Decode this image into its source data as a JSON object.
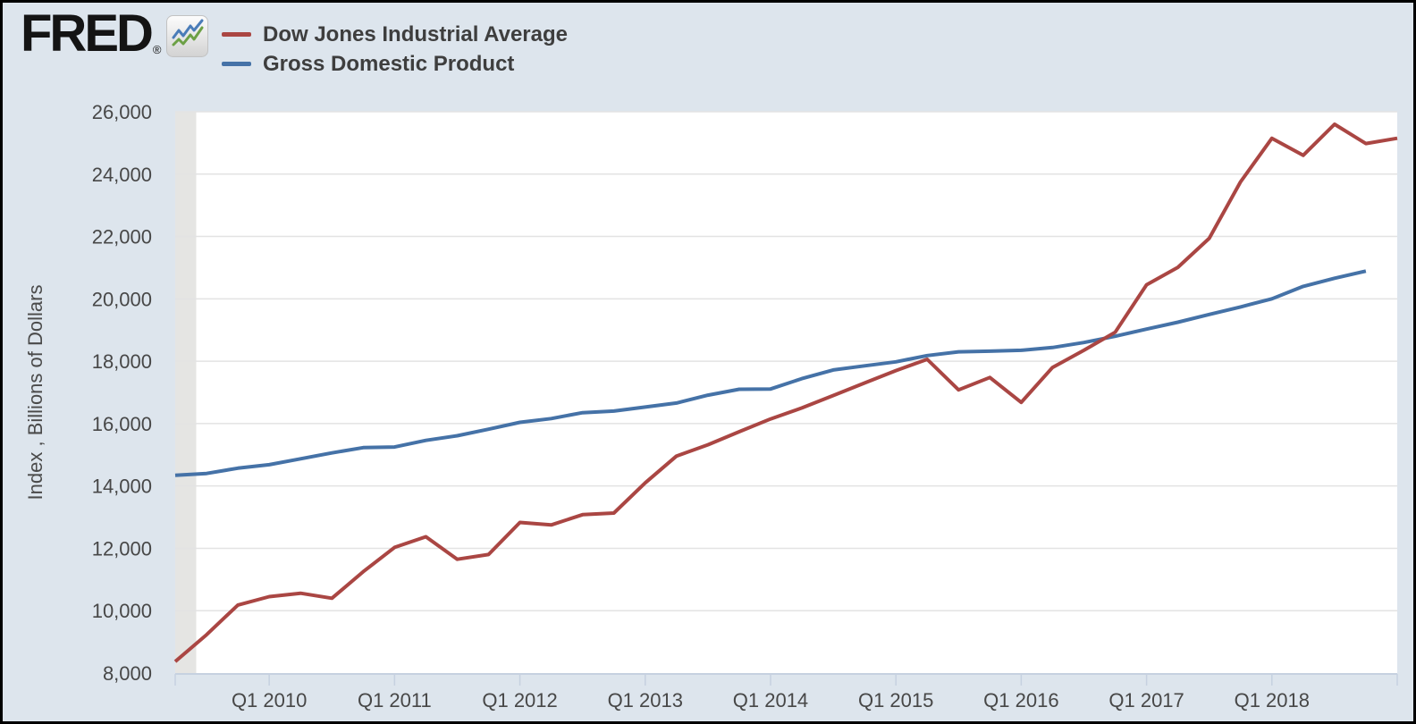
{
  "window": {
    "border_color": "#000000",
    "background_color": "#dde5ed"
  },
  "header": {
    "logo_text": "FRED",
    "registered_mark": "®",
    "logo_icon": "line-chart-icon"
  },
  "legend": {
    "position": "top-left",
    "items": [
      {
        "label": "Dow Jones Industrial Average",
        "color": "#aa4643"
      },
      {
        "label": "Gross Domestic Product",
        "color": "#4572a7"
      }
    ]
  },
  "colors": {
    "plot_background": "#ffffff",
    "gridline": "#e3e3e3",
    "axis": "#c6d1e0",
    "recession_band": "#e5e5e3",
    "tick_text": "#474747"
  },
  "chart_data": {
    "type": "line",
    "title": "",
    "xlabel": "",
    "ylabel": "Index , Billions of Dollars",
    "ylim": [
      8000,
      26000
    ],
    "y_tick_step": 2000,
    "grid": "horizontal-only",
    "legend_position": "top-left",
    "frequency": "quarterly",
    "x_range": {
      "start": "2009 Q2",
      "end": "2019 Q1",
      "quarter_count": 40
    },
    "y_ticks": [
      {
        "value": 8000,
        "label": "8,000"
      },
      {
        "value": 10000,
        "label": "10,000"
      },
      {
        "value": 12000,
        "label": "12,000"
      },
      {
        "value": 14000,
        "label": "14,000"
      },
      {
        "value": 16000,
        "label": "16,000"
      },
      {
        "value": 18000,
        "label": "18,000"
      },
      {
        "value": 20000,
        "label": "20,000"
      },
      {
        "value": 22000,
        "label": "22,000"
      },
      {
        "value": 24000,
        "label": "24,000"
      },
      {
        "value": 26000,
        "label": "26,000"
      }
    ],
    "x_ticks": [
      {
        "label": "Q1 2010",
        "quarter_index": 3
      },
      {
        "label": "Q1 2011",
        "quarter_index": 7
      },
      {
        "label": "Q1 2012",
        "quarter_index": 11
      },
      {
        "label": "Q1 2013",
        "quarter_index": 15
      },
      {
        "label": "Q1 2014",
        "quarter_index": 19
      },
      {
        "label": "Q1 2015",
        "quarter_index": 23
      },
      {
        "label": "Q1 2016",
        "quarter_index": 27
      },
      {
        "label": "Q1 2017",
        "quarter_index": 31
      },
      {
        "label": "Q1 2018",
        "quarter_index": 35
      }
    ],
    "unlabeled_edge_ticks_quarter_index": [
      0,
      39
    ],
    "recession_band": {
      "start_quarter_index": 0,
      "end_quarter_index": 0.67
    },
    "series": [
      {
        "name": "Dow Jones Industrial Average",
        "color": "#aa4643",
        "start": "2009 Q2",
        "values": [
          8370,
          9230,
          10180,
          10450,
          10560,
          10400,
          11250,
          12030,
          12370,
          11650,
          11800,
          12830,
          12750,
          13080,
          13130,
          14100,
          14960,
          15320,
          15740,
          16150,
          16500,
          16900,
          17300,
          17700,
          18060,
          17080,
          17480,
          16680,
          17800,
          18350,
          18930,
          20450,
          21010,
          21940,
          23750,
          25150,
          24600,
          25600,
          24980,
          25150
        ]
      },
      {
        "name": "Gross Domestic Product",
        "color": "#4572a7",
        "start": "2009 Q2",
        "values": [
          14340,
          14400,
          14570,
          14680,
          14870,
          15060,
          15230,
          15250,
          15460,
          15610,
          15820,
          16040,
          16160,
          16350,
          16400,
          16530,
          16660,
          16910,
          17100,
          17110,
          17440,
          17720,
          17850,
          17980,
          18180,
          18300,
          18320,
          18350,
          18440,
          18600,
          18800,
          19030,
          19250,
          19500,
          19740,
          20000,
          20400,
          20660,
          20890
        ]
      }
    ]
  }
}
